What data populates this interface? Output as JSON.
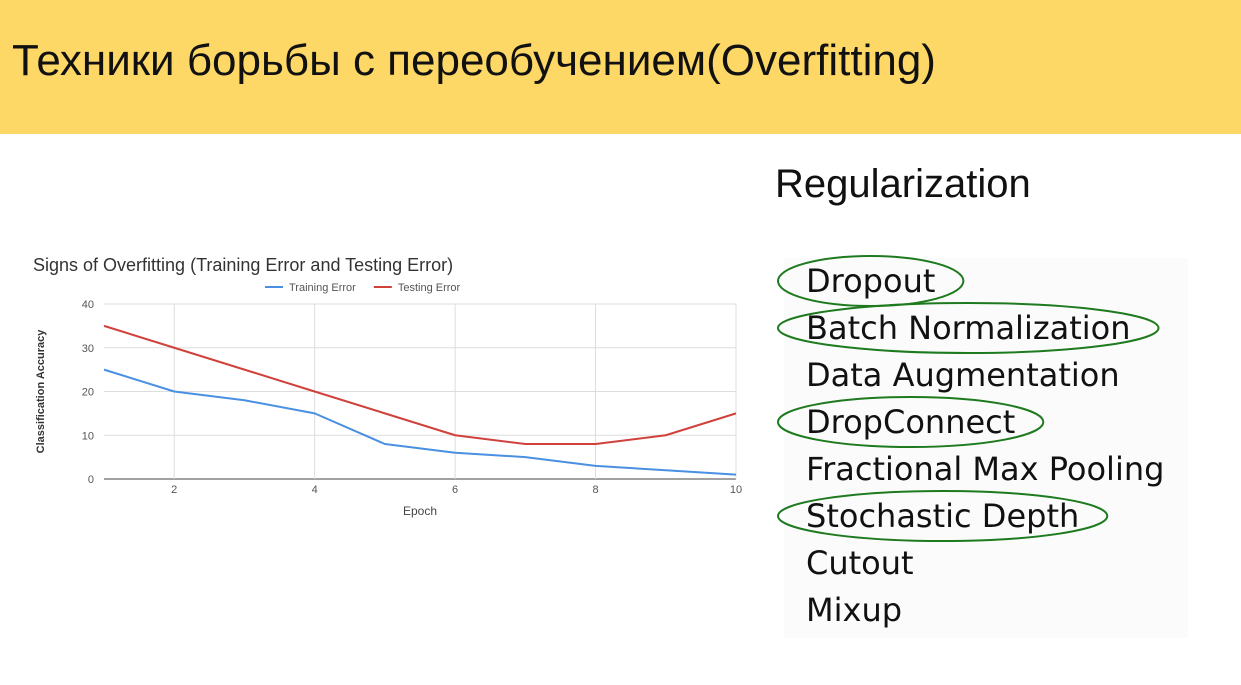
{
  "slide": {
    "title": "Техники борьбы с переобучением(Overfitting)",
    "header_color": "#fdd867"
  },
  "regularization": {
    "title": "Regularization",
    "items": [
      {
        "label": "Dropout",
        "circled": true
      },
      {
        "label": "Batch Normalization",
        "circled": true
      },
      {
        "label": "Data Augmentation",
        "circled": false
      },
      {
        "label": "DropConnect",
        "circled": true
      },
      {
        "label": "Fractional Max Pooling",
        "circled": false
      },
      {
        "label": "Stochastic Depth",
        "circled": true
      },
      {
        "label": "Cutout",
        "circled": false
      },
      {
        "label": "Mixup",
        "circled": false
      }
    ],
    "circle_color": "#1e7a1e"
  },
  "chart_data": {
    "type": "line",
    "title": "Signs of Overfitting (Training Error and Testing Error)",
    "xlabel": "Epoch",
    "ylabel": "Classification Accuracy",
    "x": [
      1,
      2,
      3,
      4,
      5,
      6,
      7,
      8,
      9,
      10
    ],
    "xlim": [
      1,
      10
    ],
    "ylim": [
      0,
      40
    ],
    "xticks": [
      2,
      4,
      6,
      8,
      10
    ],
    "yticks": [
      0,
      10,
      20,
      30,
      40
    ],
    "grid": true,
    "legend": "top",
    "series": [
      {
        "name": "Training Error",
        "color": "#4a90e2",
        "values": [
          25,
          20,
          18,
          15,
          8,
          6,
          5,
          3,
          2,
          1
        ]
      },
      {
        "name": "Testing Error",
        "color": "#d0413c",
        "values": [
          35,
          30,
          25,
          20,
          15,
          10,
          8,
          8,
          10,
          15
        ]
      }
    ]
  }
}
